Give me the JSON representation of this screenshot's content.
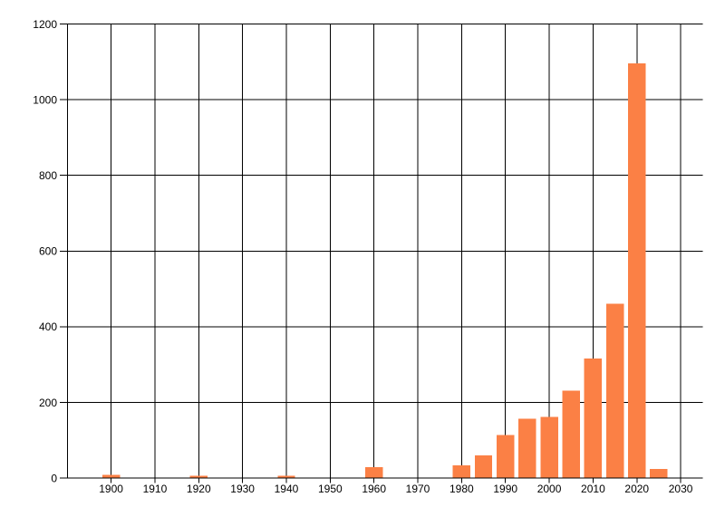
{
  "chart_data": {
    "type": "bar",
    "title": "",
    "xlabel": "",
    "ylabel": "",
    "x": [
      1900,
      1920,
      1940,
      1960,
      1980,
      1985,
      1990,
      1995,
      2000,
      2005,
      2010,
      2015,
      2020,
      2025
    ],
    "values": [
      8,
      6,
      6,
      29,
      33,
      60,
      114,
      157,
      161,
      231,
      316,
      461,
      1096,
      24
    ],
    "bin_width_years": 5,
    "x_tick_labels": [
      "1900",
      "1910",
      "1920",
      "1930",
      "1940",
      "1950",
      "1960",
      "1970",
      "1980",
      "1990",
      "2000",
      "2010",
      "2020",
      "2030"
    ],
    "x_ticks": [
      1900,
      1910,
      1920,
      1930,
      1940,
      1950,
      1960,
      1970,
      1980,
      1990,
      2000,
      2010,
      2020,
      2030
    ],
    "y_tick_labels": [
      "0",
      "200",
      "400",
      "600",
      "800",
      "1000",
      "1200"
    ],
    "y_ticks": [
      0,
      200,
      400,
      600,
      800,
      1000,
      1200
    ],
    "x_range": [
      1890,
      2035
    ],
    "ylim": [
      0,
      1200
    ],
    "grid": true,
    "legend_position": "none",
    "colors": {
      "bar": "#FB8045",
      "grid": "#000000",
      "axis": "#000000",
      "text": "#000000",
      "background": "#FFFFFF"
    }
  }
}
